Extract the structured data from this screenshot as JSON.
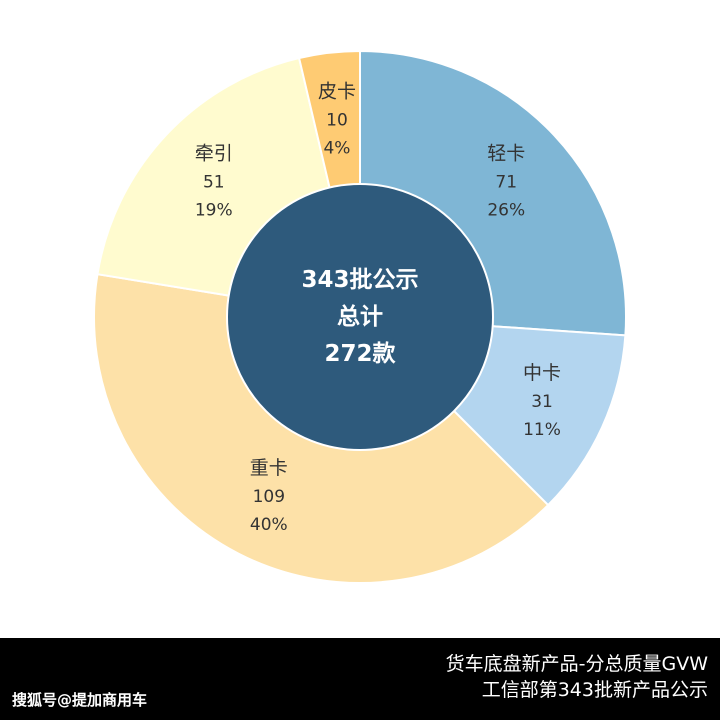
{
  "chart_data": {
    "type": "pie",
    "variant": "donut",
    "categories": [
      "轻卡",
      "中卡",
      "重卡",
      "牵引",
      "皮卡"
    ],
    "values": [
      71,
      31,
      109,
      51,
      10
    ],
    "percent_labels": [
      "26%",
      "11%",
      "40%",
      "19%",
      "4%"
    ],
    "colors": [
      "#7fb6d5",
      "#b3d5ef",
      "#fde1a8",
      "#fffbcf",
      "#fecb73"
    ],
    "center_label": [
      "343批公示",
      "总计",
      "272款"
    ],
    "center_color": "#2e5a7c",
    "start": "12 o'clock",
    "direction": "clockwise",
    "legend": "none"
  },
  "footer": {
    "line1": "货车底盘新产品-分总质量GVW",
    "line2": "工信部第343批新产品公示",
    "watermark": "搜狐号@提加商用车"
  }
}
